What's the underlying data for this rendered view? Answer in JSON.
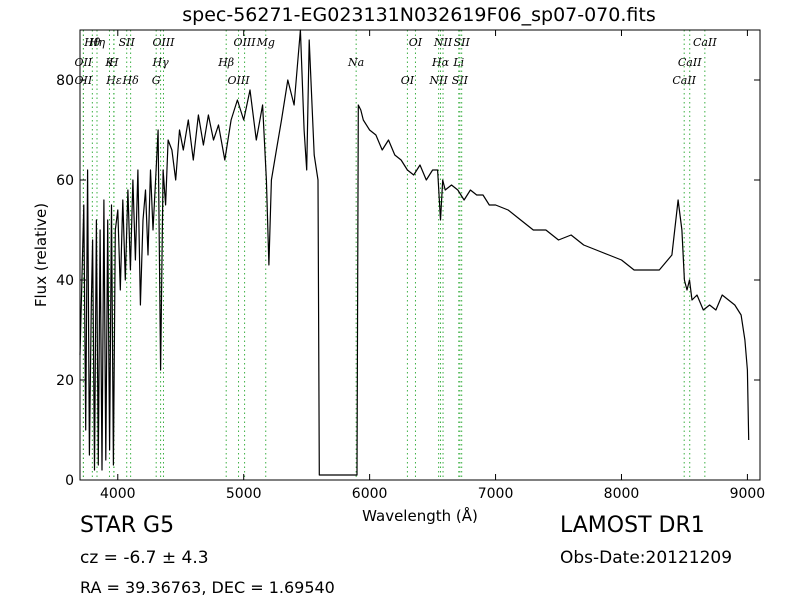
{
  "title": "spec-56271-EG023131N032619F06_sp07-070.fits",
  "footer": {
    "object_class": "STAR",
    "subclass": "G5",
    "class_line": "STAR   G5",
    "redshift": "cz = -6.7 ± 4.3",
    "coordinates": "RA = 39.36763, DEC = 1.69540",
    "survey": "LAMOST DR1",
    "obs_date": "Obs-Date:20121209"
  },
  "chart_data": {
    "type": "line",
    "title": "spec-56271-EG023131N032619F06_sp07-070.fits",
    "xlabel": "Wavelength (Å)",
    "ylabel": "Flux (relative)",
    "xlim": [
      3700,
      9100
    ],
    "ylim": [
      0,
      90
    ],
    "xticks": [
      4000,
      5000,
      6000,
      7000,
      8000,
      9000
    ],
    "yticks": [
      0,
      20,
      40,
      60,
      80
    ],
    "grid": false,
    "line_color": "#000000",
    "marker_color": "#3cb043",
    "series": [
      {
        "x": [
          3700,
          3730,
          3745,
          3760,
          3775,
          3790,
          3800,
          3815,
          3830,
          3845,
          3860,
          3875,
          3890,
          3905,
          3920,
          3935,
          3950,
          3965,
          3980,
          4000,
          4020,
          4040,
          4060,
          4080,
          4100,
          4120,
          4140,
          4160,
          4180,
          4200,
          4220,
          4240,
          4260,
          4280,
          4300,
          4320,
          4340,
          4360,
          4380,
          4400,
          4430,
          4460,
          4490,
          4520,
          4560,
          4600,
          4640,
          4680,
          4720,
          4760,
          4800,
          4850,
          4900,
          4950,
          5000,
          5050,
          5100,
          5150,
          5180,
          5200,
          5220,
          5260,
          5300,
          5350,
          5400,
          5450,
          5480,
          5500,
          5520,
          5560,
          5590,
          5600,
          5620,
          5700,
          5800,
          5900,
          5910,
          5930,
          5950,
          6000,
          6050,
          6100,
          6150,
          6200,
          6250,
          6300,
          6350,
          6400,
          6450,
          6500,
          6540,
          6563,
          6580,
          6600,
          6650,
          6700,
          6750,
          6800,
          6850,
          6900,
          6950,
          7000,
          7100,
          7200,
          7300,
          7400,
          7500,
          7600,
          7700,
          7800,
          7900,
          8000,
          8100,
          8200,
          8300,
          8400,
          8450,
          8480,
          8500,
          8520,
          8540,
          8560,
          8600,
          8650,
          8700,
          8750,
          8800,
          8850,
          8900,
          8950,
          8980,
          9000,
          9010
        ],
        "y": [
          25,
          55,
          10,
          62,
          5,
          35,
          48,
          2,
          52,
          3,
          50,
          2,
          56,
          4,
          52,
          6,
          55,
          3,
          50,
          54,
          38,
          56,
          40,
          58,
          42,
          60,
          44,
          62,
          35,
          52,
          58,
          45,
          62,
          50,
          60,
          70,
          22,
          62,
          55,
          68,
          66,
          60,
          70,
          66,
          72,
          64,
          73,
          67,
          73,
          68,
          71,
          64,
          72,
          76,
          72,
          78,
          68,
          75,
          60,
          43,
          60,
          66,
          72,
          80,
          75,
          90,
          70,
          62,
          88,
          65,
          60,
          1,
          1,
          1,
          1,
          1,
          75,
          74,
          72,
          70,
          69,
          66,
          68,
          65,
          64,
          62,
          61,
          63,
          60,
          62,
          62,
          52,
          60,
          58,
          59,
          58,
          56,
          58,
          57,
          57,
          55,
          55,
          54,
          52,
          50,
          50,
          48,
          49,
          47,
          46,
          45,
          44,
          42,
          42,
          42,
          45,
          56,
          50,
          40,
          38,
          40,
          36,
          37,
          34,
          35,
          34,
          37,
          36,
          35,
          33,
          28,
          22,
          8
        ]
      }
    ],
    "line_markers": [
      {
        "label": "Hθ",
        "wavelength": 3798
      },
      {
        "label": "K",
        "wavelength": 3934
      },
      {
        "label": "Hδ",
        "wavelength": 4102
      },
      {
        "label": "OIII",
        "wavelength": 4363
      },
      {
        "label": "OII",
        "wavelength": 3727
      },
      {
        "label": "Hε",
        "wavelength": 3970
      },
      {
        "label": "SII",
        "wavelength": 4071
      },
      {
        "label": "Hγ",
        "wavelength": 4340
      },
      {
        "label": "OII",
        "wavelength": 3727
      },
      {
        "label": "Hη",
        "wavelength": 3835
      },
      {
        "label": "H",
        "wavelength": 3968
      },
      {
        "label": "G",
        "wavelength": 4305
      },
      {
        "label": "OIII",
        "wavelength": 5007
      },
      {
        "label": "Hβ",
        "wavelength": 4861
      },
      {
        "label": "OIII",
        "wavelength": 4959
      },
      {
        "label": "Mg",
        "wavelength": 5175
      },
      {
        "label": "Na",
        "wavelength": 5893
      },
      {
        "label": "OI",
        "wavelength": 6300
      },
      {
        "label": "OI",
        "wavelength": 6364
      },
      {
        "label": "Hα",
        "wavelength": 6563
      },
      {
        "label": "SII",
        "wavelength": 6717
      },
      {
        "label": "NII",
        "wavelength": 6583
      },
      {
        "label": "Li",
        "wavelength": 6708
      },
      {
        "label": "NII",
        "wavelength": 6548
      },
      {
        "label": "SII",
        "wavelength": 6731
      },
      {
        "label": "CaII",
        "wavelength": 8542
      },
      {
        "label": "CaII",
        "wavelength": 8498
      },
      {
        "label": "CaII",
        "wavelength": 8662
      }
    ]
  }
}
